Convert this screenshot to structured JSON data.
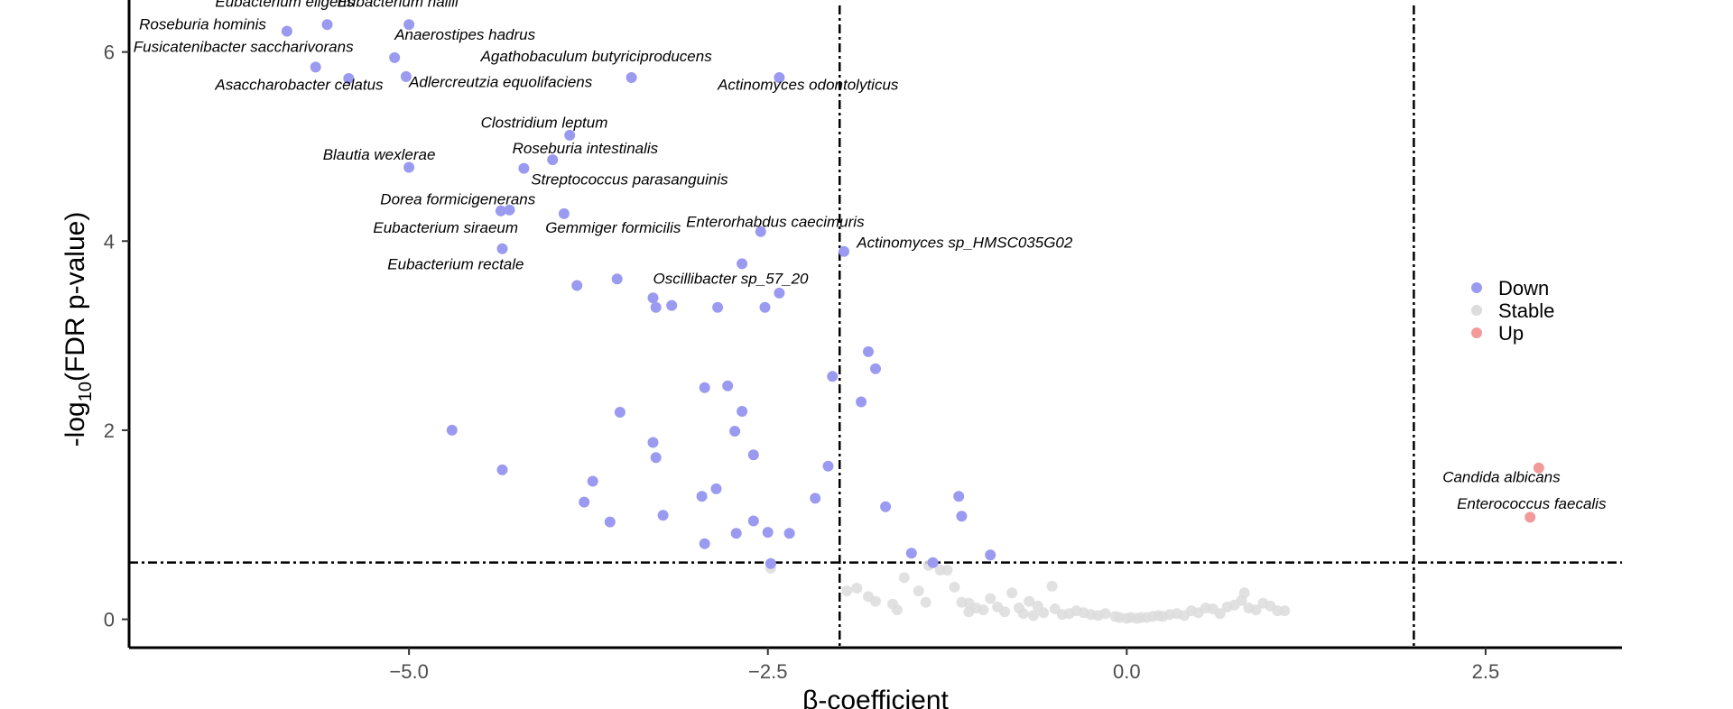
{
  "chart_data": {
    "type": "scatter",
    "xlabel": "β-coefficient",
    "ylabel_prefix": "-log",
    "ylabel_sub": "10",
    "ylabel_suffix": "(FDR p-value)",
    "xlim": [
      -6.95,
      3.45
    ],
    "ylim": [
      -0.3,
      6.55
    ],
    "x_ticks": [
      -5.0,
      -2.5,
      0.0,
      2.5
    ],
    "x_tick_labels": [
      "−5.0",
      "−2.5",
      "0.0",
      "2.5"
    ],
    "y_ticks": [
      0,
      2,
      4,
      6
    ],
    "y_tick_labels": [
      "0",
      "2",
      "4",
      "6"
    ],
    "vlines": [
      -2,
      2
    ],
    "hline": 0.6,
    "grid": false,
    "legend_position": "right",
    "legend": [
      {
        "name": "Down",
        "color": "#9a9af0"
      },
      {
        "name": "Stable",
        "color": "#dcdcdc"
      },
      {
        "name": "Up",
        "color": "#f29a9a"
      }
    ],
    "series": [
      {
        "name": "Down",
        "color": "#9a9af0",
        "points": [
          [
            -5.85,
            6.22
          ],
          [
            -5.57,
            6.29
          ],
          [
            -5.0,
            6.29
          ],
          [
            -5.65,
            5.84
          ],
          [
            -5.1,
            5.94
          ],
          [
            -5.42,
            5.72
          ],
          [
            -5.02,
            5.74
          ],
          [
            -3.45,
            5.73
          ],
          [
            -2.42,
            5.73
          ],
          [
            -3.88,
            5.12
          ],
          [
            -4.0,
            4.86
          ],
          [
            -4.2,
            4.77
          ],
          [
            -5.0,
            4.78
          ],
          [
            -4.3,
            4.33
          ],
          [
            -4.36,
            4.32
          ],
          [
            -3.92,
            4.29
          ],
          [
            -2.55,
            4.1
          ],
          [
            -1.97,
            3.89
          ],
          [
            -4.35,
            3.92
          ],
          [
            -2.68,
            3.76
          ],
          [
            -3.55,
            3.6
          ],
          [
            -3.83,
            3.53
          ],
          [
            -2.42,
            3.45
          ],
          [
            -3.3,
            3.4
          ],
          [
            -3.28,
            3.3
          ],
          [
            -3.17,
            3.32
          ],
          [
            -2.85,
            3.3
          ],
          [
            -2.52,
            3.3
          ],
          [
            -1.8,
            2.83
          ],
          [
            -1.75,
            2.65
          ],
          [
            -2.05,
            2.57
          ],
          [
            -2.78,
            2.47
          ],
          [
            -2.94,
            2.45
          ],
          [
            -1.85,
            2.3
          ],
          [
            -2.68,
            2.2
          ],
          [
            -3.53,
            2.19
          ],
          [
            -4.7,
            2.0
          ],
          [
            -2.73,
            1.99
          ],
          [
            -3.3,
            1.87
          ],
          [
            -3.28,
            1.71
          ],
          [
            -2.6,
            1.74
          ],
          [
            -2.08,
            1.62
          ],
          [
            -4.35,
            1.58
          ],
          [
            -3.72,
            1.46
          ],
          [
            -2.86,
            1.38
          ],
          [
            -1.17,
            1.3
          ],
          [
            -2.96,
            1.3
          ],
          [
            -2.17,
            1.28
          ],
          [
            -3.78,
            1.24
          ],
          [
            -1.68,
            1.19
          ],
          [
            -3.23,
            1.1
          ],
          [
            -1.15,
            1.09
          ],
          [
            -3.6,
            1.03
          ],
          [
            -2.6,
            1.04
          ],
          [
            -2.72,
            0.91
          ],
          [
            -2.5,
            0.92
          ],
          [
            -2.35,
            0.91
          ],
          [
            -2.94,
            0.8
          ],
          [
            -1.5,
            0.7
          ],
          [
            -0.95,
            0.68
          ],
          [
            -1.35,
            0.6
          ],
          [
            -2.48,
            0.59
          ]
        ]
      },
      {
        "name": "Stable",
        "color": "#dcdcdc",
        "points": [
          [
            -2.48,
            0.54
          ],
          [
            -1.95,
            0.3
          ],
          [
            -1.88,
            0.33
          ],
          [
            -1.8,
            0.24
          ],
          [
            -1.75,
            0.19
          ],
          [
            -1.63,
            0.16
          ],
          [
            -1.55,
            0.44
          ],
          [
            -1.45,
            0.3
          ],
          [
            -1.4,
            0.18
          ],
          [
            -1.38,
            0.57
          ],
          [
            -1.3,
            0.52
          ],
          [
            -1.25,
            0.52
          ],
          [
            -1.2,
            0.34
          ],
          [
            -1.15,
            0.18
          ],
          [
            -1.1,
            0.17
          ],
          [
            -1.05,
            0.12
          ],
          [
            -1.0,
            0.1
          ],
          [
            -0.95,
            0.22
          ],
          [
            -0.9,
            0.13
          ],
          [
            -0.85,
            0.08
          ],
          [
            -0.8,
            0.28
          ],
          [
            -0.75,
            0.12
          ],
          [
            -0.72,
            0.06
          ],
          [
            -0.68,
            0.19
          ],
          [
            -0.62,
            0.14
          ],
          [
            -0.58,
            0.07
          ],
          [
            -0.52,
            0.35
          ],
          [
            -0.5,
            0.11
          ],
          [
            -0.45,
            0.05
          ],
          [
            -0.4,
            0.06
          ],
          [
            -0.35,
            0.09
          ],
          [
            -0.3,
            0.07
          ],
          [
            -0.25,
            0.05
          ],
          [
            -0.2,
            0.04
          ],
          [
            -0.15,
            0.06
          ],
          [
            -0.08,
            0.03
          ],
          [
            -0.05,
            0.02
          ],
          [
            0.0,
            0.01
          ],
          [
            0.03,
            0.02
          ],
          [
            0.07,
            0.01
          ],
          [
            0.1,
            0.02
          ],
          [
            0.14,
            0.02
          ],
          [
            0.18,
            0.03
          ],
          [
            0.22,
            0.04
          ],
          [
            0.25,
            0.03
          ],
          [
            0.3,
            0.05
          ],
          [
            0.35,
            0.06
          ],
          [
            0.4,
            0.04
          ],
          [
            0.45,
            0.09
          ],
          [
            0.5,
            0.07
          ],
          [
            0.55,
            0.12
          ],
          [
            0.6,
            0.11
          ],
          [
            0.65,
            0.06
          ],
          [
            0.7,
            0.13
          ],
          [
            0.75,
            0.15
          ],
          [
            0.8,
            0.2
          ],
          [
            0.82,
            0.28
          ],
          [
            0.85,
            0.12
          ],
          [
            0.9,
            0.1
          ],
          [
            0.95,
            0.17
          ],
          [
            1.0,
            0.14
          ],
          [
            1.05,
            0.09
          ],
          [
            1.1,
            0.09
          ],
          [
            -1.6,
            0.1
          ],
          [
            -1.1,
            0.08
          ],
          [
            -0.65,
            0.04
          ]
        ]
      },
      {
        "name": "Up",
        "color": "#f29a9a",
        "points": [
          [
            2.87,
            1.6
          ],
          [
            2.81,
            1.08
          ]
        ]
      }
    ],
    "annotations": [
      {
        "text": "Eubacterium eligens",
        "point": [
          -5.57,
          6.29
        ],
        "label": [
          -6.35,
          6.48
        ]
      },
      {
        "text": "Eubacterium hallii",
        "point": [
          -5.0,
          6.29
        ],
        "label": [
          -5.5,
          6.48
        ]
      },
      {
        "text": "Roseburia hominis",
        "point": [
          -5.85,
          6.22
        ],
        "label": [
          -6.88,
          6.24
        ]
      },
      {
        "text": "Anaerostipes hadrus",
        "point": [
          -5.1,
          5.94
        ],
        "label": [
          -5.1,
          6.13
        ]
      },
      {
        "text": "Fusicatenibacter saccharivorans",
        "point": [
          -5.65,
          5.84
        ],
        "label": [
          -6.92,
          6.0
        ]
      },
      {
        "text": "Agathobaculum butyriciproducens",
        "point": [
          -3.45,
          5.73
        ],
        "label": [
          -4.5,
          5.9
        ]
      },
      {
        "text": "Asaccharobacter celatus",
        "point": [
          -5.42,
          5.72
        ],
        "label": [
          -6.35,
          5.6
        ]
      },
      {
        "text": "Adlercreutzia equolifaciens",
        "point": [
          -5.02,
          5.74
        ],
        "label": [
          -5.0,
          5.63
        ]
      },
      {
        "text": "Actinomyces odontolyticus",
        "point": [
          -2.42,
          5.73
        ],
        "label": [
          -2.85,
          5.6
        ]
      },
      {
        "text": "Clostridium leptum",
        "point": [
          -3.88,
          5.12
        ],
        "label": [
          -4.5,
          5.2
        ]
      },
      {
        "text": "Roseburia intestinalis",
        "point": [
          -4.0,
          4.86
        ],
        "label": [
          -4.28,
          4.93
        ]
      },
      {
        "text": "Blautia wexlerae",
        "point": [
          -5.0,
          4.78
        ],
        "label": [
          -5.6,
          4.86
        ]
      },
      {
        "text": "Streptococcus parasanguinis",
        "point": [
          -4.2,
          4.77
        ],
        "label": [
          -4.15,
          4.6
        ]
      },
      {
        "text": "Dorea formicigenerans",
        "point": [
          -4.3,
          4.33
        ],
        "label": [
          -5.2,
          4.39
        ]
      },
      {
        "text": "Eubacterium siraeum",
        "point": [
          -4.36,
          4.32
        ],
        "label": [
          -5.25,
          4.09
        ]
      },
      {
        "text": "Gemmiger formicilis",
        "point": [
          -3.92,
          4.29
        ],
        "label": [
          -4.05,
          4.09
        ]
      },
      {
        "text": "Enterorhabdus caecimuris",
        "point": [
          -2.55,
          4.1
        ],
        "label": [
          -3.07,
          4.15
        ]
      },
      {
        "text": "Actinomyces sp_HMSC035G02",
        "point": [
          -1.97,
          3.89
        ],
        "label": [
          -1.88,
          3.93
        ]
      },
      {
        "text": "Eubacterium rectale",
        "point": [
          -4.35,
          3.92
        ],
        "label": [
          -5.15,
          3.7
        ]
      },
      {
        "text": "Oscillibacter sp_57_20",
        "point": [
          -2.68,
          3.76
        ],
        "label": [
          -3.3,
          3.55
        ]
      },
      {
        "text": "Candida albicans",
        "point": [
          2.87,
          1.6
        ],
        "label": [
          2.2,
          1.45
        ]
      },
      {
        "text": "Enterococcus faecalis",
        "point": [
          2.81,
          1.08
        ],
        "label": [
          2.3,
          1.17
        ]
      }
    ]
  }
}
